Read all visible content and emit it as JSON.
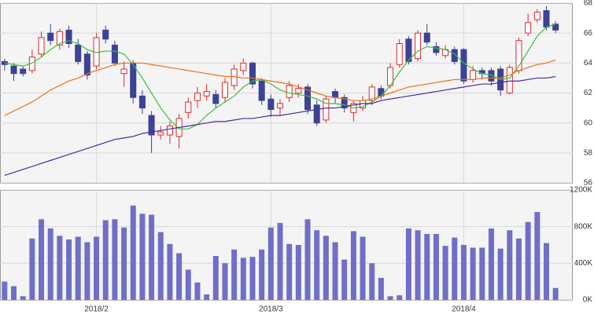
{
  "chart_data": [
    {
      "type": "candlestick",
      "open": [
        64.1,
        63.8,
        63.6,
        63.5,
        64.6,
        66.0,
        65.2,
        66.2,
        65.2,
        64.6,
        63.8,
        66.2,
        65.2,
        63.3,
        64.0,
        61.8,
        60.5,
        59.2,
        59.2,
        59.1,
        60.7,
        61.5,
        61.8,
        61.9,
        61.7,
        62.5,
        63.5,
        64.0,
        62.8,
        61.6,
        61.0,
        61.7,
        62.0,
        62.4,
        61.2,
        60.2,
        62.1,
        61.7,
        60.7,
        61.0,
        61.5,
        62.3,
        62.5,
        63.9,
        65.6,
        64.3,
        66.0,
        65.1,
        64.5,
        64.9,
        64.9,
        62.9,
        63.5,
        63.5,
        63.6,
        62.0,
        63.5,
        66.0,
        66.9,
        67.5,
        66.6
      ],
      "high": [
        64.3,
        64.0,
        63.8,
        64.9,
        66.1,
        66.6,
        66.3,
        66.5,
        65.6,
        64.8,
        66.0,
        66.5,
        65.5,
        64.1,
        64.2,
        62.2,
        60.8,
        59.8,
        60.1,
        60.6,
        61.7,
        62.4,
        62.6,
        62.2,
        63.0,
        63.9,
        64.3,
        64.1,
        63.0,
        61.9,
        61.6,
        62.8,
        62.6,
        62.6,
        61.5,
        61.8,
        62.3,
        61.9,
        61.5,
        61.8,
        62.6,
        62.5,
        64.0,
        65.6,
        65.8,
        66.2,
        66.6,
        65.4,
        65.2,
        65.1,
        65.0,
        63.8,
        63.7,
        63.7,
        63.8,
        63.9,
        65.7,
        67.3,
        67.6,
        67.8,
        66.8
      ],
      "low": [
        63.5,
        62.8,
        63.1,
        63.3,
        64.4,
        65.2,
        64.9,
        65.0,
        63.9,
        62.9,
        63.6,
        65.3,
        63.8,
        62.4,
        61.3,
        60.6,
        58.0,
        58.9,
        58.6,
        58.3,
        60.3,
        61.0,
        61.5,
        61.0,
        61.4,
        62.2,
        63.2,
        62.3,
        61.2,
        60.4,
        60.5,
        61.4,
        61.7,
        60.6,
        59.8,
        60.0,
        61.3,
        60.7,
        60.1,
        60.8,
        61.2,
        61.6,
        62.3,
        63.7,
        63.9,
        64.1,
        65.2,
        64.5,
        64.3,
        63.9,
        62.6,
        62.7,
        62.9,
        62.5,
        61.8,
        61.9,
        63.3,
        65.8,
        66.7,
        66.2,
        66.0
      ],
      "close": [
        63.9,
        63.3,
        63.3,
        64.4,
        65.7,
        65.5,
        66.1,
        65.3,
        64.1,
        63.2,
        65.7,
        65.6,
        64.0,
        63.6,
        61.7,
        61.0,
        59.2,
        59.4,
        59.8,
        60.3,
        61.4,
        62.0,
        62.1,
        61.3,
        62.7,
        63.6,
        64.0,
        62.6,
        61.5,
        60.9,
        61.3,
        62.5,
        62.3,
        60.9,
        60.0,
        61.6,
        61.7,
        61.0,
        61.3,
        61.5,
        62.4,
        61.8,
        63.7,
        65.3,
        64.1,
        66.0,
        65.4,
        64.7,
        64.9,
        64.1,
        62.8,
        63.5,
        63.3,
        62.8,
        62.2,
        63.7,
        65.5,
        66.7,
        67.4,
        66.4,
        66.2
      ],
      "up_color": "#e0282c",
      "down_color": "#3c4296",
      "series": [
        {
          "color": "#3cbf3c",
          "values": [
            64.0,
            63.9,
            63.8,
            64.0,
            64.4,
            64.9,
            65.3,
            65.5,
            65.3,
            64.9,
            64.7,
            64.8,
            64.8,
            64.6,
            63.9,
            63.0,
            62.0,
            61.0,
            60.2,
            59.6,
            59.6,
            59.9,
            60.5,
            61.0,
            61.4,
            61.8,
            62.4,
            62.8,
            62.9,
            62.6,
            62.2,
            62.0,
            61.9,
            61.8,
            61.6,
            61.3,
            61.3,
            61.2,
            61.0,
            61.1,
            61.4,
            61.8,
            62.5,
            63.4,
            64.2,
            64.8,
            65.1,
            65.0,
            64.9,
            64.6,
            64.0,
            63.6,
            63.3,
            63.2,
            62.9,
            63.0,
            63.8,
            64.8,
            65.8,
            66.4,
            66.6
          ]
        },
        {
          "color": "#e8741c",
          "values": [
            60.5,
            60.8,
            61.1,
            61.4,
            61.8,
            62.2,
            62.5,
            62.8,
            63.0,
            63.3,
            63.5,
            63.7,
            63.9,
            64.0,
            64.0,
            64.0,
            63.9,
            63.8,
            63.7,
            63.6,
            63.5,
            63.4,
            63.3,
            63.2,
            63.1,
            63.1,
            63.0,
            63.0,
            62.9,
            62.8,
            62.7,
            62.6,
            62.4,
            62.2,
            62.0,
            61.8,
            61.7,
            61.6,
            61.5,
            61.5,
            61.6,
            61.8,
            62.0,
            62.2,
            62.4,
            62.5,
            62.6,
            62.7,
            62.8,
            62.9,
            62.9,
            62.9,
            63.0,
            63.0,
            63.0,
            63.2,
            63.5,
            63.7,
            63.9,
            64.0,
            64.2
          ]
        },
        {
          "color": "#4a2a9a",
          "values": [
            56.5,
            56.7,
            56.9,
            57.1,
            57.3,
            57.5,
            57.7,
            57.9,
            58.1,
            58.3,
            58.5,
            58.7,
            58.9,
            59.0,
            59.1,
            59.3,
            59.4,
            59.5,
            59.6,
            59.7,
            59.8,
            59.9,
            60.0,
            60.1,
            60.1,
            60.2,
            60.3,
            60.3,
            60.4,
            60.5,
            60.5,
            60.6,
            60.7,
            60.8,
            60.9,
            61.0,
            61.0,
            61.1,
            61.2,
            61.3,
            61.3,
            61.5,
            61.6,
            61.7,
            61.8,
            61.9,
            62.0,
            62.1,
            62.2,
            62.3,
            62.4,
            62.5,
            62.6,
            62.6,
            62.7,
            62.8,
            62.8,
            62.9,
            63.0,
            63.0,
            63.1
          ]
        }
      ],
      "ylim": [
        56,
        68
      ],
      "yticks": [
        56,
        58,
        60,
        62,
        64,
        66,
        68
      ],
      "grid": true
    },
    {
      "type": "bar",
      "categories": [
        null,
        null,
        null,
        null,
        null,
        null,
        null,
        null,
        null,
        null,
        "2018/2",
        null,
        null,
        null,
        null,
        null,
        null,
        null,
        null,
        null,
        null,
        null,
        null,
        null,
        null,
        null,
        null,
        null,
        null,
        "2018/3",
        null,
        null,
        null,
        null,
        null,
        null,
        null,
        null,
        null,
        null,
        null,
        null,
        null,
        null,
        null,
        null,
        null,
        null,
        null,
        null,
        "2018/4",
        null,
        null,
        null,
        null,
        null,
        null,
        null,
        null,
        null,
        null
      ],
      "values": [
        200000,
        150000,
        40000,
        670000,
        880000,
        780000,
        700000,
        660000,
        690000,
        630000,
        690000,
        870000,
        880000,
        790000,
        1030000,
        940000,
        930000,
        740000,
        610000,
        510000,
        330000,
        190000,
        60000,
        480000,
        400000,
        550000,
        460000,
        470000,
        550000,
        790000,
        840000,
        610000,
        600000,
        880000,
        760000,
        700000,
        630000,
        440000,
        750000,
        690000,
        400000,
        240000,
        40000,
        50000,
        780000,
        760000,
        720000,
        720000,
        590000,
        680000,
        600000,
        570000,
        570000,
        780000,
        560000,
        760000,
        670000,
        850000,
        960000,
        620000,
        130000
      ],
      "color": "#6f6fc8",
      "ylim": [
        0,
        1200000
      ],
      "yticks": [
        {
          "value": 0,
          "label": "0K"
        },
        {
          "value": 400000,
          "label": "400K"
        },
        {
          "value": 800000,
          "label": "800K"
        },
        {
          "value": 1200000,
          "label": "1200K"
        }
      ],
      "grid": true
    }
  ]
}
